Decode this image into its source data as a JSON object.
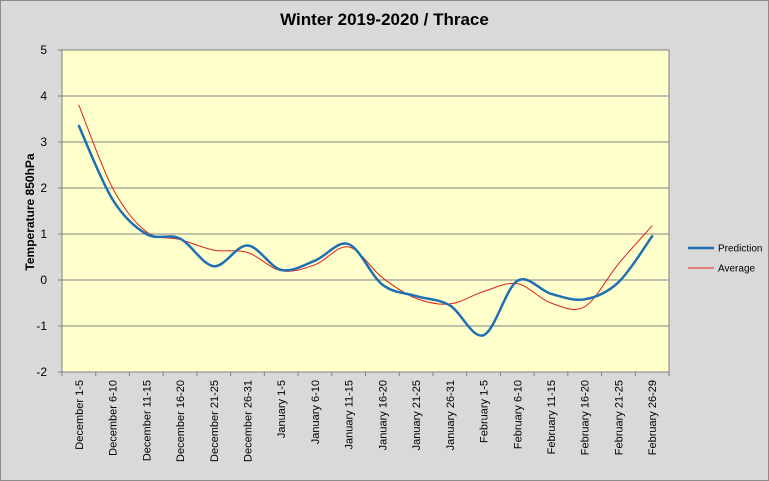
{
  "chart_data": {
    "type": "line",
    "title": "Winter 2019-2020 / Thrace",
    "ylabel": "Temperature 850hPa",
    "xlabel": "",
    "ylim": [
      -2,
      5
    ],
    "yticks": [
      "5",
      "4",
      "3",
      "2",
      "1",
      "0",
      "-1",
      "-2"
    ],
    "grid": true,
    "legend_position": "right",
    "categories": [
      "December 1-5",
      "December 6-10",
      "December 11-15",
      "December 16-20",
      "December 21-25",
      "December 26-31",
      "January 1-5",
      "January 6-10",
      "January 11-15",
      "January 16-20",
      "January 21-25",
      "January 26-31",
      "February 1-5",
      "February 6-10",
      "February 11-15",
      "February 16-20",
      "February 21-25",
      "February 26-29"
    ],
    "series": [
      {
        "name": "Prediction",
        "color": "#1f6fb5",
        "values": [
          3.35,
          1.75,
          1.0,
          0.9,
          0.3,
          0.75,
          0.22,
          0.42,
          0.78,
          -0.1,
          -0.35,
          -0.55,
          -1.2,
          -0.02,
          -0.3,
          -0.42,
          -0.05,
          0.95
        ]
      },
      {
        "name": "Average",
        "color": "#e0231a",
        "values": [
          3.8,
          2.0,
          1.05,
          0.88,
          0.65,
          0.6,
          0.2,
          0.33,
          0.72,
          0.05,
          -0.4,
          -0.52,
          -0.25,
          -0.08,
          -0.5,
          -0.58,
          0.35,
          1.18
        ]
      }
    ]
  }
}
